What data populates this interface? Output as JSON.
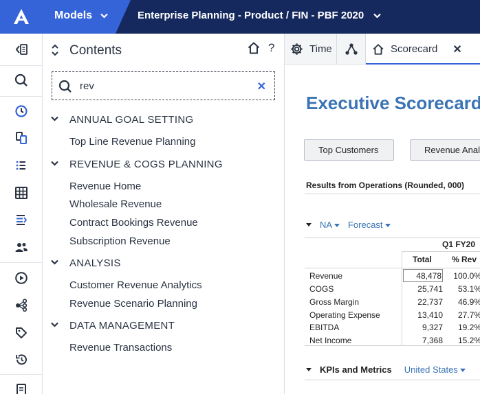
{
  "topbar": {
    "models_label": "Models",
    "breadcrumb": "Enterprise Planning - Product / FIN - PBF 2020"
  },
  "contents": {
    "title": "Contents",
    "help": "?",
    "search": {
      "value": "rev",
      "clear": "✕"
    },
    "sections": [
      {
        "label": "ANNUAL GOAL SETTING",
        "items": [
          "Top Line Revenue Planning"
        ]
      },
      {
        "label": "REVENUE & COGS PLANNING",
        "items": [
          "Revenue Home",
          "Wholesale Revenue",
          "Contract Bookings Revenue",
          "Subscription Revenue"
        ]
      },
      {
        "label": "ANALYSIS",
        "items": [
          "Customer Revenue Analytics",
          "Revenue Scenario Planning"
        ]
      },
      {
        "label": "DATA MANAGEMENT",
        "items": [
          "Revenue Transactions"
        ]
      }
    ]
  },
  "tabs": {
    "time": "Time",
    "scorecard": "Scorecard",
    "close": "✕"
  },
  "main": {
    "title": "Executive Scorecard",
    "buttons": [
      "Top Customers",
      "Revenue Analysis"
    ],
    "results_title": "Results from Operations (Rounded, 000)",
    "filters": {
      "region": "NA",
      "version": "Forecast"
    },
    "period": "Q1 FY20",
    "columns": {
      "total": "Total",
      "pct": "% Rev"
    },
    "rows": [
      {
        "label": "Revenue",
        "total": "48,478",
        "pct": "100.0%"
      },
      {
        "label": "COGS",
        "total": "25,741",
        "pct": "53.1%"
      },
      {
        "label": "Gross Margin",
        "total": "22,737",
        "pct": "46.9%"
      },
      {
        "label": "Operating Expense",
        "total": "13,410",
        "pct": "27.7%"
      },
      {
        "label": "EBITDA",
        "total": "9,327",
        "pct": "19.2%"
      },
      {
        "label": "Net Income",
        "total": "7,368",
        "pct": "15.2%"
      }
    ],
    "kpi": {
      "title": "KPIs and Metrics",
      "country": "United States"
    }
  },
  "colors": {
    "brand_blue": "#3563d8",
    "navy": "#15295e",
    "title_blue": "#3a74b5",
    "text": "#2a3342"
  },
  "icons": {
    "rail": [
      "collapse-panel-icon",
      "search-icon",
      "clock-icon",
      "copy-icon",
      "list-icon",
      "grid-icon",
      "list-arrows-icon",
      "users-icon",
      "play-icon",
      "network-icon",
      "tag-icon",
      "history-icon",
      "document-icon"
    ]
  }
}
